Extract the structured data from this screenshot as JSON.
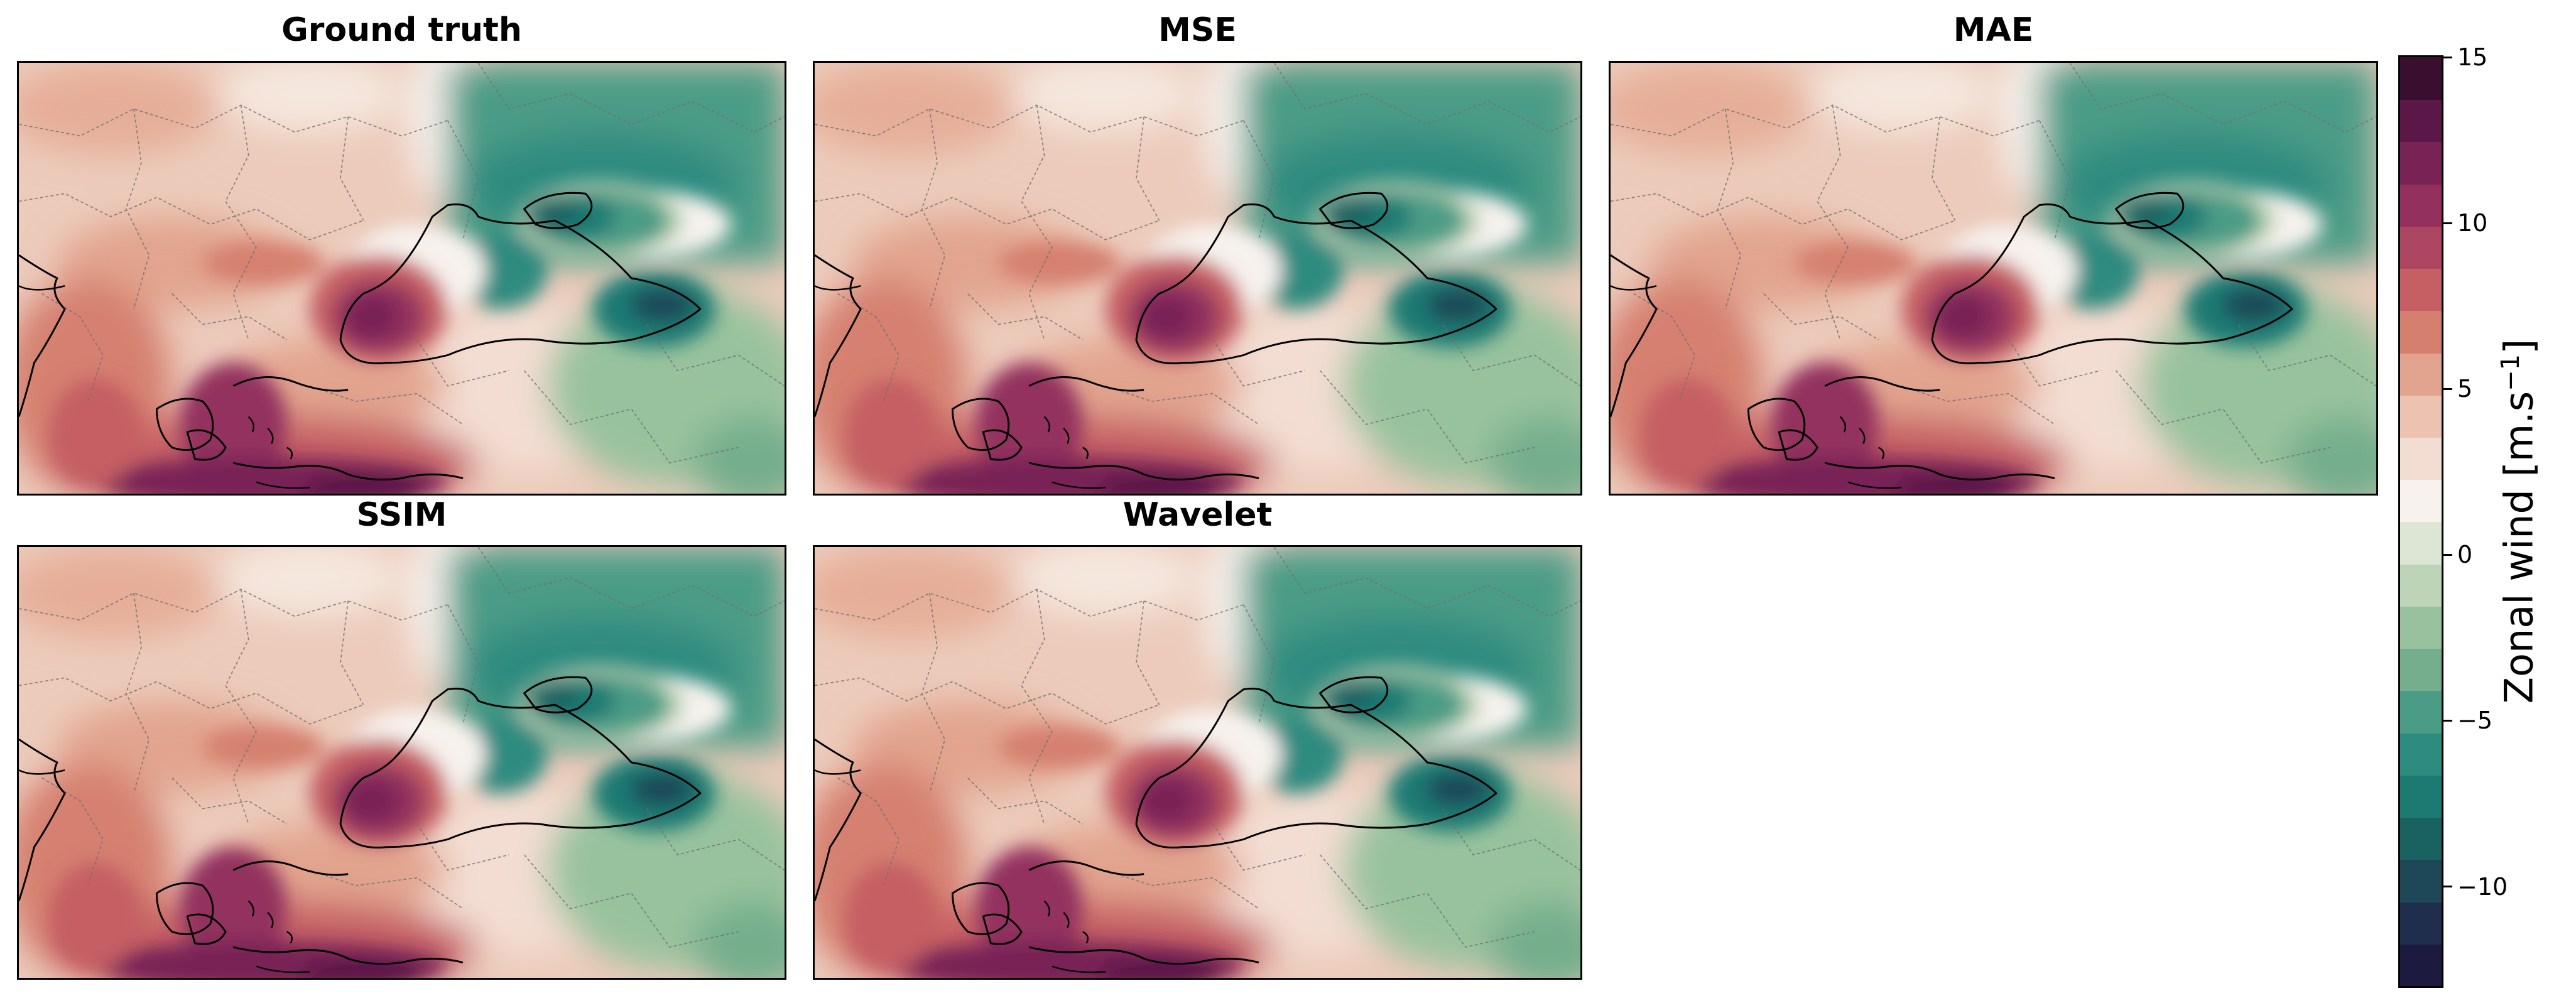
{
  "figure": {
    "panels": [
      {
        "id": "ground-truth",
        "title": "Ground truth"
      },
      {
        "id": "mse",
        "title": "MSE"
      },
      {
        "id": "mae",
        "title": "MAE"
      },
      {
        "id": "ssim",
        "title": "SSIM"
      },
      {
        "id": "wavelet",
        "title": "Wavelet"
      }
    ]
  },
  "colorbar": {
    "label": "Zonal wind [m.s",
    "label_superscript": "−1",
    "label_close": "]",
    "range": [
      -13,
      15
    ],
    "ticks": [
      {
        "value": 15,
        "label": "15"
      },
      {
        "value": 10,
        "label": "10"
      },
      {
        "value": 5,
        "label": "5"
      },
      {
        "value": 0,
        "label": "0"
      },
      {
        "value": -5,
        "label": "−5"
      },
      {
        "value": -10,
        "label": "−10"
      }
    ],
    "colors": [
      "#1d1a3f",
      "#1f2e4d",
      "#1e4858",
      "#1a6262",
      "#1d7a73",
      "#2d8b80",
      "#4b9c86",
      "#74ae8c",
      "#98c29d",
      "#bdd4b6",
      "#dde5d5",
      "#f7f2ee",
      "#f3ddd2",
      "#ecc3b0",
      "#e2a48e",
      "#d5806f",
      "#c55f64",
      "#ad4661",
      "#93305e",
      "#782256",
      "#5a1747",
      "#3a0e2f"
    ]
  }
}
